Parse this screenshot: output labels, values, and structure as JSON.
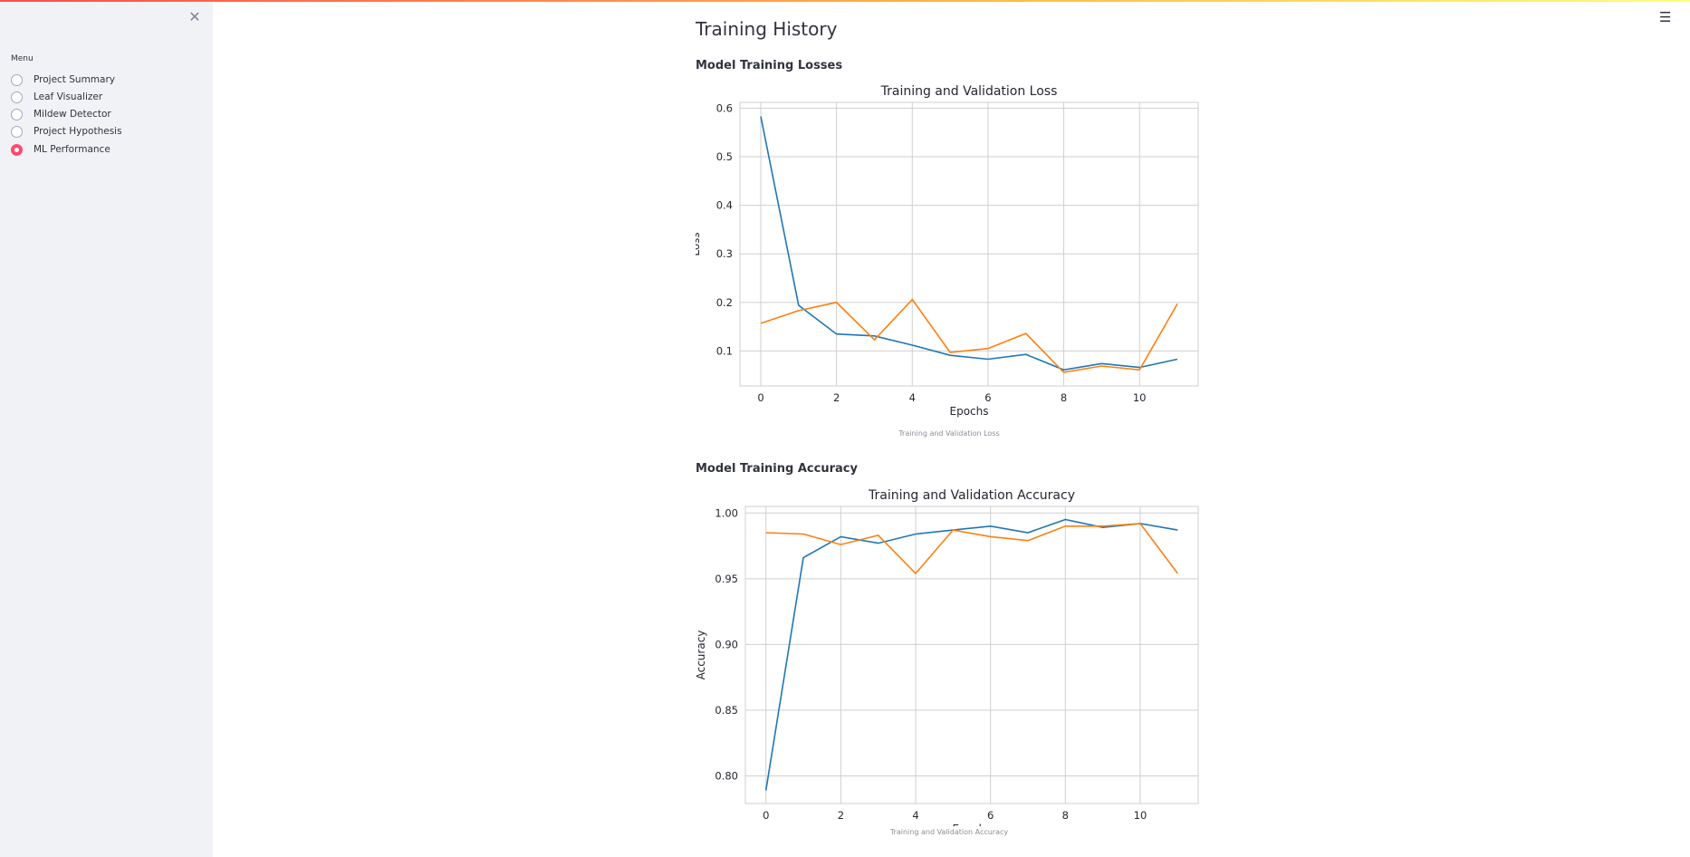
{
  "sidebar": {
    "close_icon": "close-icon",
    "menu_label": "Menu",
    "items": [
      {
        "label": "Project Summary",
        "selected": false
      },
      {
        "label": "Leaf Visualizer",
        "selected": false
      },
      {
        "label": "Mildew Detector",
        "selected": false
      },
      {
        "label": "Project Hypothesis",
        "selected": false
      },
      {
        "label": "ML Performance",
        "selected": true
      }
    ],
    "accent_color": "#ff4b6e"
  },
  "header": {
    "menu_icon": "hamburger-menu-icon"
  },
  "main": {
    "title": "Training History",
    "loss_section": {
      "heading": "Model Training Losses",
      "caption": "Training and Validation Loss"
    },
    "accuracy_section": {
      "heading": "Model Training Accuracy",
      "caption": "Training and Validation Accuracy"
    }
  },
  "chart_data": [
    {
      "type": "line",
      "title": "Training and Validation Loss",
      "xlabel": "Epochs",
      "ylabel": "Loss",
      "x": [
        0,
        1,
        2,
        3,
        4,
        5,
        6,
        7,
        8,
        9,
        10,
        11
      ],
      "xticks": [
        0,
        2,
        4,
        6,
        8,
        10
      ],
      "yticks": [
        0.1,
        0.2,
        0.3,
        0.4,
        0.5,
        0.6
      ],
      "xlim": [
        -0.55,
        11.55
      ],
      "ylim": [
        0.028,
        0.612
      ],
      "grid": true,
      "series": [
        {
          "color": "#1f77b4",
          "values": [
            0.583,
            0.194,
            0.135,
            0.131,
            0.112,
            0.091,
            0.083,
            0.093,
            0.061,
            0.074,
            0.066,
            0.083
          ]
        },
        {
          "color": "#ff7f0e",
          "values": [
            0.157,
            0.183,
            0.2,
            0.123,
            0.206,
            0.097,
            0.105,
            0.136,
            0.056,
            0.069,
            0.061,
            0.197
          ]
        }
      ]
    },
    {
      "type": "line",
      "title": "Training and Validation Accuracy",
      "xlabel": "Epochs",
      "ylabel": "Accuracy",
      "x": [
        0,
        1,
        2,
        3,
        4,
        5,
        6,
        7,
        8,
        9,
        10,
        11
      ],
      "xticks": [
        0,
        2,
        4,
        6,
        8,
        10
      ],
      "yticks": [
        "0.80",
        "0.85",
        "0.90",
        "0.95",
        "1.00"
      ],
      "xlim": [
        -0.55,
        11.55
      ],
      "ylim": [
        0.779,
        1.005
      ],
      "grid": true,
      "series": [
        {
          "color": "#1f77b4",
          "values": [
            0.789,
            0.966,
            0.982,
            0.977,
            0.984,
            0.987,
            0.99,
            0.985,
            0.995,
            0.989,
            0.992,
            0.987
          ]
        },
        {
          "color": "#ff7f0e",
          "values": [
            0.985,
            0.984,
            0.976,
            0.983,
            0.954,
            0.987,
            0.982,
            0.979,
            0.99,
            0.99,
            0.992,
            0.954
          ]
        }
      ]
    }
  ]
}
